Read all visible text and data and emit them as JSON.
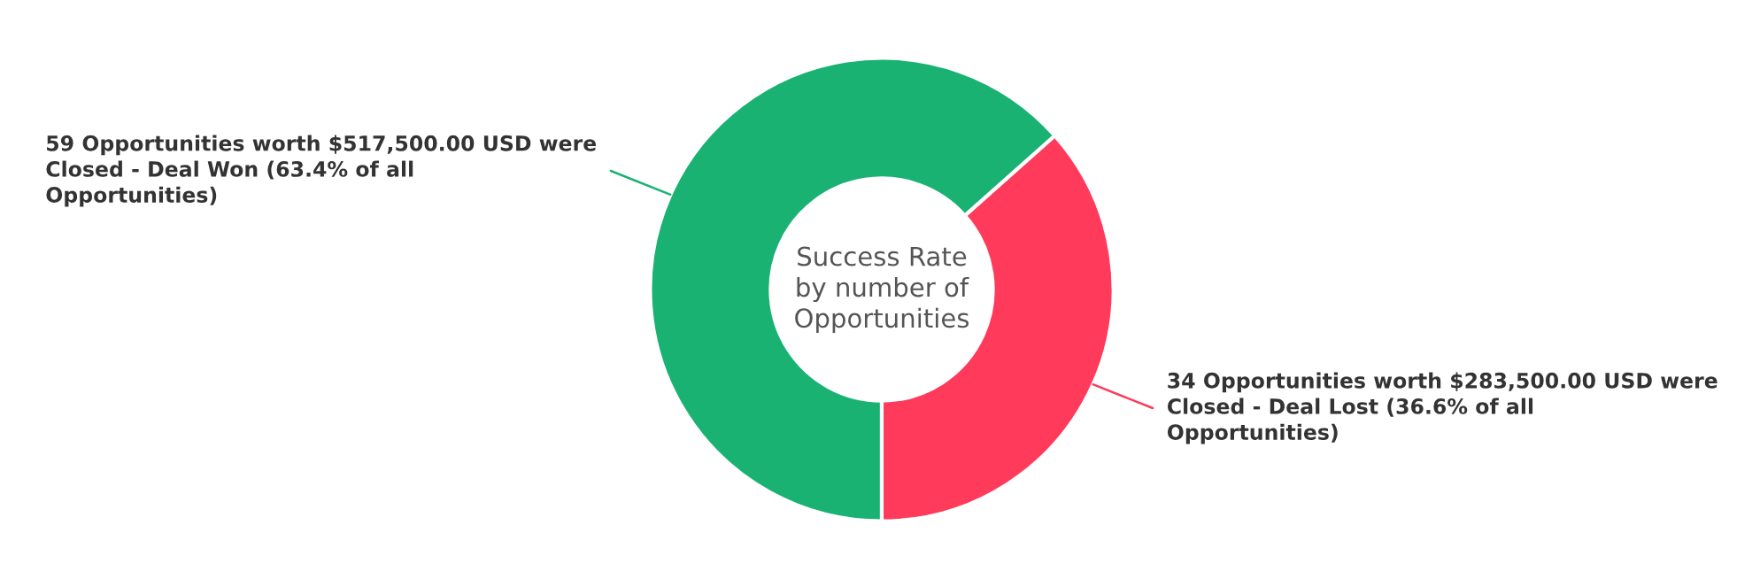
{
  "chart_data": {
    "type": "donut",
    "title": "Success Rate\nby number of\nOpportunities",
    "categories": [
      "59 Opportunities worth $517,500.00 USD were\nClosed - Deal Won (63.4% of all\nOpportunities)",
      "34 Opportunities worth $283,500.00 USD were\nClosed - Deal Lost (36.6% of all\nOpportunities)"
    ],
    "values": [
      59,
      34
    ],
    "colors": [
      "#19b273",
      "#ff3a5a"
    ],
    "legend": false
  }
}
